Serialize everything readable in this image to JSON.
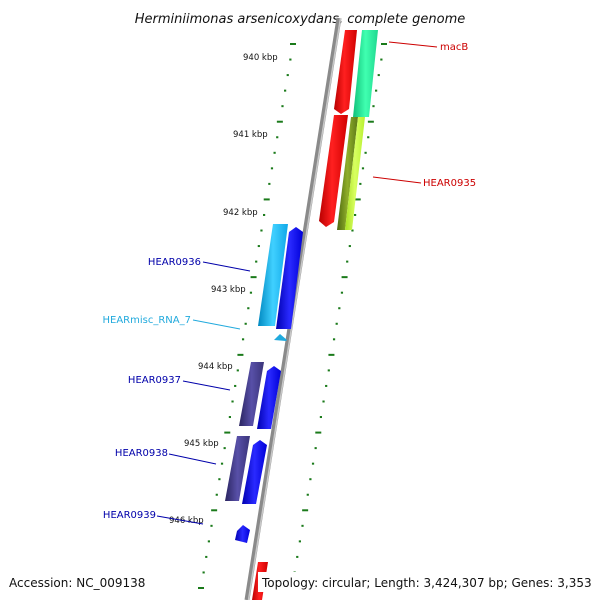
{
  "title": "Herminiimonas arsenicoxydans, complete genome",
  "footer": {
    "accession": "Accession: NC_009138",
    "topology": "Topology: circular; Length: 3,424,307 bp; Genes: 3,353"
  },
  "scale_labels": [
    "940 kbp",
    "941 kbp",
    "942 kbp",
    "943 kbp",
    "944 kbp",
    "945 kbp",
    "946 kbp"
  ],
  "genes": [
    {
      "id": "macB",
      "label": "macB",
      "color": "#cc0000"
    },
    {
      "id": "HEAR0935",
      "label": "HEAR0935",
      "color": "#cc0000"
    },
    {
      "id": "HEAR0936",
      "label": "HEAR0936",
      "color": "#0000aa"
    },
    {
      "id": "HEARmisc_RNA_7",
      "label": "HEARmisc_RNA_7",
      "color": "#22aadd"
    },
    {
      "id": "HEAR0937",
      "label": "HEAR0937",
      "color": "#0000aa"
    },
    {
      "id": "HEAR0938",
      "label": "HEAR0938",
      "color": "#0000aa"
    },
    {
      "id": "HEAR0939",
      "label": "HEAR0939",
      "color": "#0000aa"
    }
  ]
}
